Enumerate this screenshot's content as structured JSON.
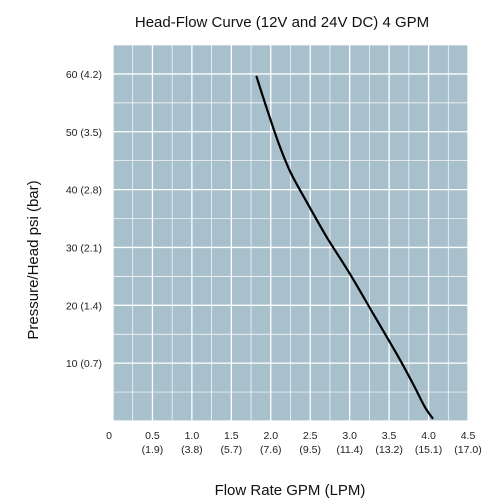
{
  "chart_data": {
    "type": "line",
    "title": "Head-Flow Curve (12V and 24V DC) 4 GPM",
    "xlabel": "Flow Rate GPM (LPM)",
    "ylabel": "Pressure/Head psi (bar)",
    "xlim": [
      0,
      4.5
    ],
    "ylim": [
      0,
      65
    ],
    "grid": true,
    "plot_background": "#a8bfcc",
    "grid_color": "#ffffff",
    "line_color": "#000000",
    "x_ticks": [
      {
        "value": 0,
        "label": "0",
        "sub": ""
      },
      {
        "value": 0.5,
        "label": "0.5",
        "sub": "(1.9)"
      },
      {
        "value": 1.0,
        "label": "1.0",
        "sub": "(3.8)"
      },
      {
        "value": 1.5,
        "label": "1.5",
        "sub": "(5.7)"
      },
      {
        "value": 2.0,
        "label": "2.0",
        "sub": "(7.6)"
      },
      {
        "value": 2.5,
        "label": "2.5",
        "sub": "(9.5)"
      },
      {
        "value": 3.0,
        "label": "3.0",
        "sub": "(11.4)"
      },
      {
        "value": 3.5,
        "label": "3.5",
        "sub": "(13.2)"
      },
      {
        "value": 4.0,
        "label": "4.0",
        "sub": "(15.1)"
      },
      {
        "value": 4.5,
        "label": "4.5",
        "sub": "(17.0)"
      }
    ],
    "y_ticks": [
      {
        "value": 10,
        "label": "10 (0.7)"
      },
      {
        "value": 20,
        "label": "20 (1.4)"
      },
      {
        "value": 30,
        "label": "30 (2.1)"
      },
      {
        "value": 40,
        "label": "40 (2.8)"
      },
      {
        "value": 50,
        "label": "50 (3.5)"
      },
      {
        "value": 60,
        "label": "60 (4.2)"
      }
    ],
    "series": [
      {
        "x": [
          1.82,
          1.95,
          2.1,
          2.25,
          2.45,
          2.7,
          3.0,
          3.3,
          3.6,
          3.8,
          3.95,
          4.05
        ],
        "y": [
          59.5,
          54,
          48,
          43,
          38,
          32,
          25.5,
          18.5,
          11.5,
          6.5,
          2.5,
          0.5
        ]
      }
    ]
  }
}
